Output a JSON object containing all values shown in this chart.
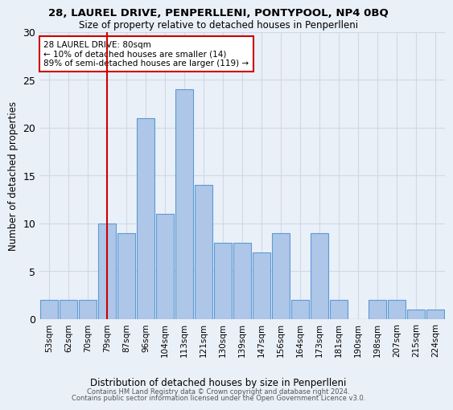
{
  "title": "28, LAUREL DRIVE, PENPERLLENI, PONTYPOOL, NP4 0BQ",
  "subtitle": "Size of property relative to detached houses in Penperlleni",
  "xlabel": "Distribution of detached houses by size in Penperlleni",
  "ylabel": "Number of detached properties",
  "bin_labels": [
    "53sqm",
    "62sqm",
    "70sqm",
    "79sqm",
    "87sqm",
    "96sqm",
    "104sqm",
    "113sqm",
    "121sqm",
    "130sqm",
    "139sqm",
    "147sqm",
    "156sqm",
    "164sqm",
    "173sqm",
    "181sqm",
    "190sqm",
    "198sqm",
    "207sqm",
    "215sqm",
    "224sqm"
  ],
  "bar_heights": [
    2,
    2,
    2,
    10,
    9,
    21,
    11,
    24,
    14,
    8,
    8,
    7,
    9,
    2,
    9,
    2,
    0,
    2,
    2,
    1,
    1
  ],
  "bar_color": "#aec6e8",
  "bar_edge_color": "#5b9bd5",
  "vline_color": "#cc0000",
  "annotation_line1": "28 LAUREL DRIVE: 80sqm",
  "annotation_line2": "← 10% of detached houses are smaller (14)",
  "annotation_line3": "89% of semi-detached houses are larger (119) →",
  "annotation_box_color": "#ffffff",
  "annotation_box_edge_color": "#cc0000",
  "ylim": [
    0,
    30
  ],
  "yticks": [
    0,
    5,
    10,
    15,
    20,
    25,
    30
  ],
  "grid_color": "#d0d8e8",
  "background_color": "#eaf0f8",
  "footer_line1": "Contains HM Land Registry data © Crown copyright and database right 2024.",
  "footer_line2": "Contains public sector information licensed under the Open Government Licence v3.0."
}
